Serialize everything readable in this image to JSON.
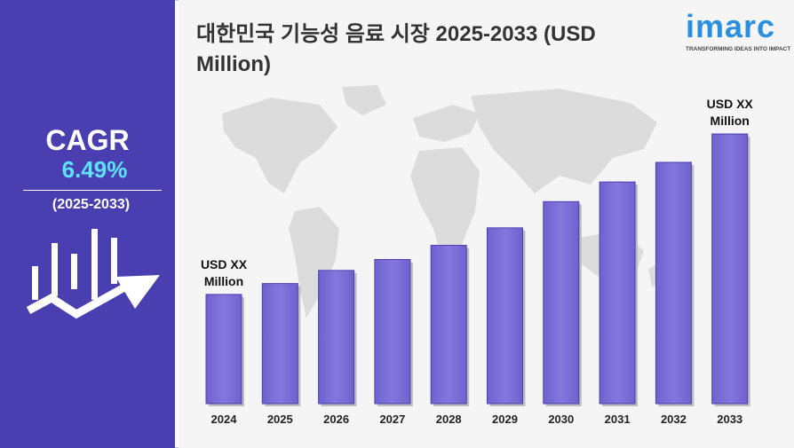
{
  "sidebar": {
    "cagr_label": "CAGR",
    "cagr_value": "6.49%",
    "period": "(2025-2033)",
    "icon": "bar-growth-arrow-icon"
  },
  "header": {
    "title": "대한민국 기능성 음료 시장 2025-2033 (USD Million)"
  },
  "logo": {
    "wordmark": "imarc",
    "tagline": "TRANSFORMING IDEAS INTO IMPACT"
  },
  "colors": {
    "sidebar_bg": "#4a3fb0",
    "cagr_value": "#5ee3ff",
    "bar_fill": "#7d6fd8",
    "bar_edge": "#4a3fb0",
    "map": "#d9d9d9",
    "logo": "#2a8fe0"
  },
  "chart_data": {
    "type": "bar",
    "categories": [
      "2024",
      "2025",
      "2026",
      "2027",
      "2028",
      "2029",
      "2030",
      "2031",
      "2032",
      "2033"
    ],
    "values": [
      100,
      110,
      122,
      132,
      145,
      161,
      185,
      203,
      221,
      247
    ],
    "ylim": [
      0,
      260
    ],
    "annotations": [
      {
        "category": "2024",
        "text": [
          "USD XX",
          "Million"
        ]
      },
      {
        "category": "2033",
        "text": [
          "USD XX",
          "Million"
        ]
      }
    ],
    "xlabel": "",
    "ylabel": "",
    "grid": false
  }
}
